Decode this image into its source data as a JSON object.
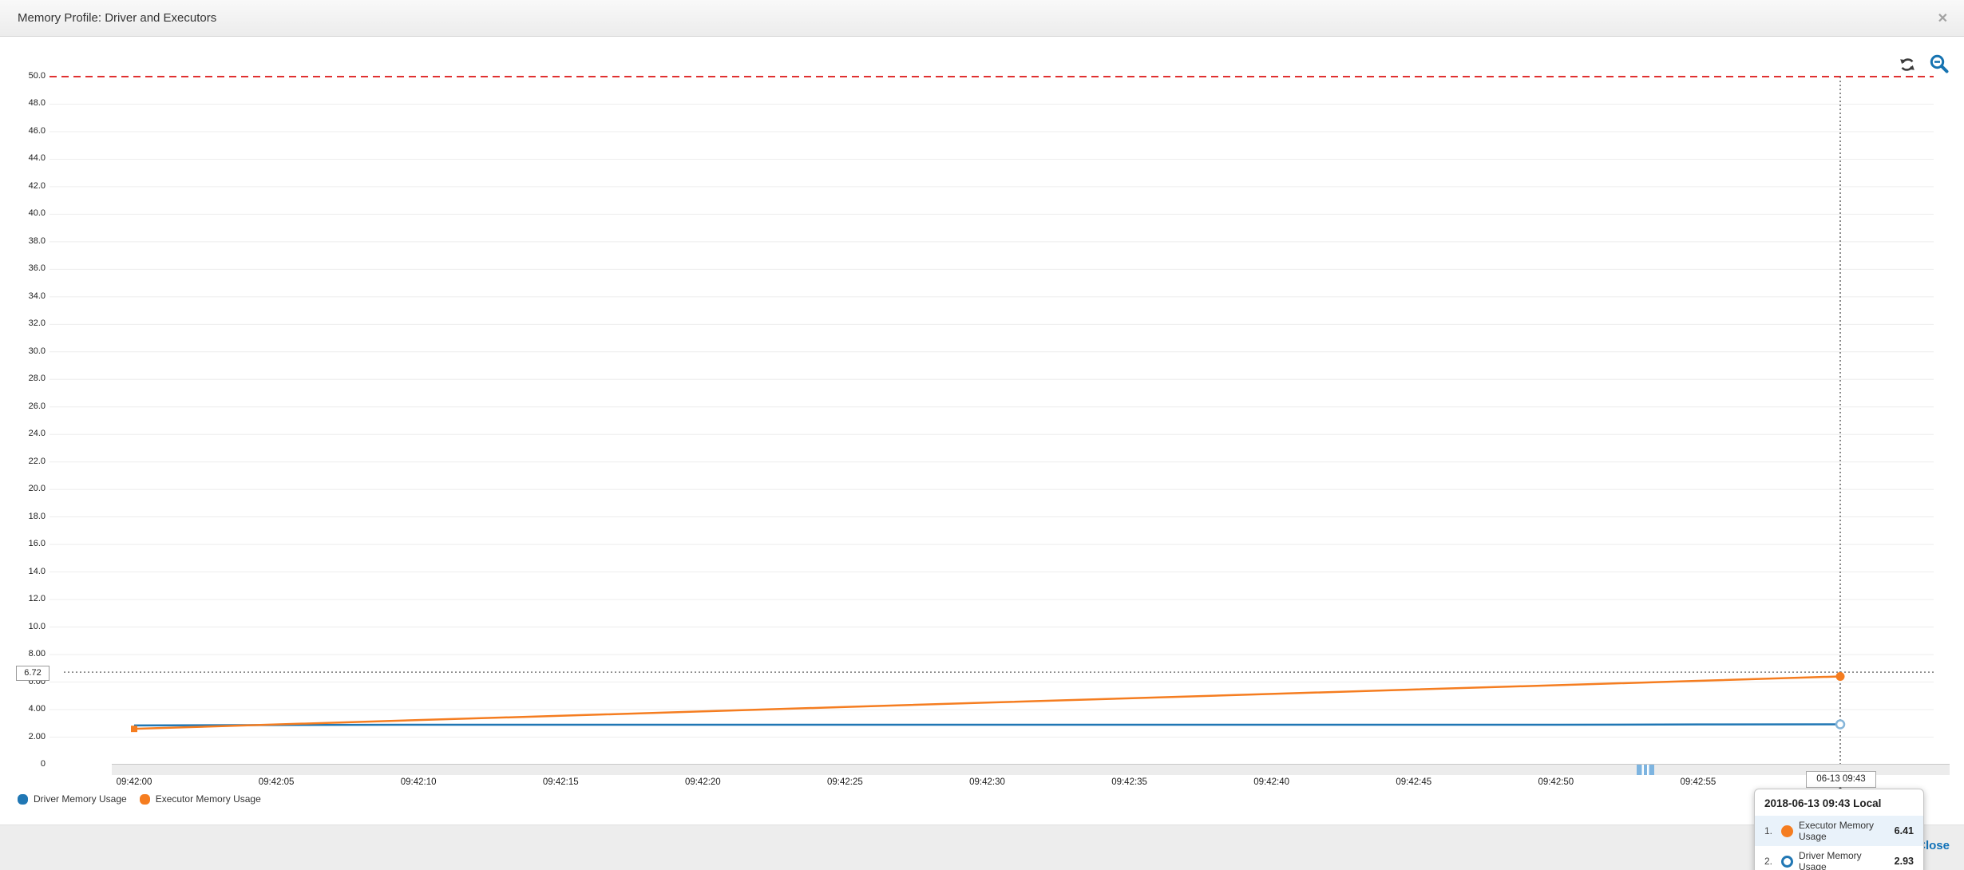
{
  "header": {
    "title": "Memory Profile: Driver and Executors",
    "close_icon": "close-x"
  },
  "toolbar": {
    "refresh_icon": "refresh",
    "zoom_out_icon": "zoom-out"
  },
  "chart_data": {
    "type": "line",
    "title": "Memory Profile: Driver and Executors",
    "ylim": [
      0,
      50
    ],
    "grid": "horizontal",
    "legend_position": "bottom-left",
    "threshold": {
      "value": 50,
      "color": "#e03131",
      "style": "dashed"
    },
    "y_ticks": [
      {
        "v": 50,
        "label": "50.0"
      },
      {
        "v": 48,
        "label": "48.0"
      },
      {
        "v": 46,
        "label": "46.0"
      },
      {
        "v": 44,
        "label": "44.0"
      },
      {
        "v": 42,
        "label": "42.0"
      },
      {
        "v": 40,
        "label": "40.0"
      },
      {
        "v": 38,
        "label": "38.0"
      },
      {
        "v": 36,
        "label": "36.0"
      },
      {
        "v": 34,
        "label": "34.0"
      },
      {
        "v": 32,
        "label": "32.0"
      },
      {
        "v": 30,
        "label": "30.0"
      },
      {
        "v": 28,
        "label": "28.0"
      },
      {
        "v": 26,
        "label": "26.0"
      },
      {
        "v": 24,
        "label": "24.0"
      },
      {
        "v": 22,
        "label": "22.0"
      },
      {
        "v": 20,
        "label": "20.0"
      },
      {
        "v": 18,
        "label": "18.0"
      },
      {
        "v": 16,
        "label": "16.0"
      },
      {
        "v": 14,
        "label": "14.0"
      },
      {
        "v": 12,
        "label": "12.0"
      },
      {
        "v": 10,
        "label": "10.0"
      },
      {
        "v": 8,
        "label": "8.00"
      },
      {
        "v": 6,
        "label": "6.00"
      },
      {
        "v": 4,
        "label": "4.00"
      },
      {
        "v": 2,
        "label": "2.00"
      },
      {
        "v": 0,
        "label": "0"
      }
    ],
    "x_ticks": [
      {
        "s": 0,
        "label": "09:42:00"
      },
      {
        "s": 5,
        "label": "09:42:05"
      },
      {
        "s": 10,
        "label": "09:42:10"
      },
      {
        "s": 15,
        "label": "09:42:15"
      },
      {
        "s": 20,
        "label": "09:42:20"
      },
      {
        "s": 25,
        "label": "09:42:25"
      },
      {
        "s": 30,
        "label": "09:42:30"
      },
      {
        "s": 35,
        "label": "09:42:35"
      },
      {
        "s": 40,
        "label": "09:42:40"
      },
      {
        "s": 45,
        "label": "09:42:45"
      },
      {
        "s": 50,
        "label": "09:42:50"
      },
      {
        "s": 55,
        "label": "09:42:55"
      }
    ],
    "series": [
      {
        "name": "Driver Memory Usage",
        "color": "#2077b4",
        "end_marker": "open-circle",
        "x_seconds": [
          0,
          5,
          10,
          15,
          20,
          25,
          30,
          35,
          40,
          45,
          50,
          55,
          60
        ],
        "values": [
          2.85,
          2.88,
          2.9,
          2.9,
          2.9,
          2.9,
          2.9,
          2.9,
          2.9,
          2.9,
          2.9,
          2.92,
          2.93
        ]
      },
      {
        "name": "Executor Memory Usage",
        "color": "#f57d20",
        "end_marker": "filled-circle",
        "start_marker": "filled-square",
        "x_seconds": [
          0,
          5,
          10,
          15,
          20,
          25,
          30,
          35,
          40,
          45,
          50,
          55,
          60
        ],
        "values": [
          2.6,
          2.92,
          3.24,
          3.55,
          3.87,
          4.19,
          4.51,
          4.82,
          5.14,
          5.46,
          5.77,
          6.09,
          6.41
        ]
      }
    ],
    "crosshair": {
      "x_seconds": 60,
      "x_label": "06-13 09:43",
      "y_marker_value": 6.72
    }
  },
  "axis_marker": {
    "y_value_label": "6.72",
    "x_hover_label": "06-13 09:43"
  },
  "legend": {
    "items": [
      {
        "label": "Driver Memory Usage",
        "color": "#2077b4"
      },
      {
        "label": "Executor Memory Usage",
        "color": "#f57d20"
      }
    ]
  },
  "tooltip": {
    "title": "2018-06-13 09:43 Local",
    "rows": [
      {
        "index": "1.",
        "name": "Executor Memory Usage",
        "value": "6.41"
      },
      {
        "index": "2.",
        "name": "Driver Memory Usage",
        "value": "2.93"
      }
    ]
  },
  "footer": {
    "close_label": "Close"
  },
  "colors": {
    "accent_blue": "#1272b8",
    "series_blue": "#2077b4",
    "series_orange": "#f57d20",
    "threshold_red": "#e03131"
  }
}
